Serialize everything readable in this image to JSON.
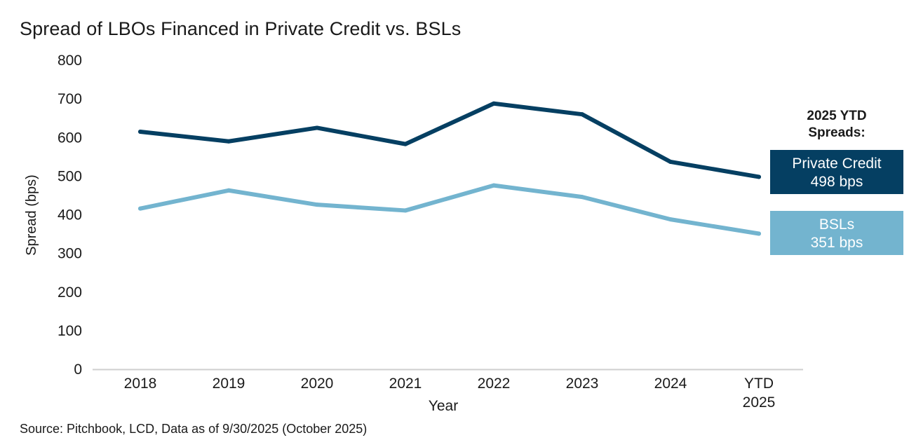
{
  "title": "Spread of LBOs Financed in Private Credit vs. BSLs",
  "source": "Source: Pitchbook, LCD, Data as of 9/30/2025 (October 2025)",
  "colors": {
    "private_credit": "#053f62",
    "bsl": "#73b4cf",
    "axis": "#cfcfcf",
    "text": "#1a1a1a"
  },
  "side_panel": {
    "heading_line1": "2025 YTD",
    "heading_line2": "Spreads:",
    "private_credit": {
      "name": "Private Credit",
      "value": "498 bps"
    },
    "bsl": {
      "name": "BSLs",
      "value": "351 bps"
    }
  },
  "chart_data": {
    "type": "line",
    "title": "Spread of LBOs Financed in Private Credit vs. BSLs",
    "xlabel": "Year",
    "ylabel": "Spread (bps)",
    "categories": [
      "2018",
      "2019",
      "2020",
      "2021",
      "2022",
      "2023",
      "2024",
      "YTD 2025"
    ],
    "category_lines": [
      [
        "2018"
      ],
      [
        "2019"
      ],
      [
        "2020"
      ],
      [
        "2021"
      ],
      [
        "2022"
      ],
      [
        "2023"
      ],
      [
        "2024"
      ],
      [
        "YTD",
        "2025"
      ]
    ],
    "ylim": [
      0,
      800
    ],
    "yticks": [
      0,
      100,
      200,
      300,
      400,
      500,
      600,
      700,
      800
    ],
    "grid": false,
    "series": [
      {
        "name": "Private Credit",
        "values": [
          615,
          590,
          625,
          583,
          688,
          660,
          537,
          498
        ]
      },
      {
        "name": "BSLs",
        "values": [
          416,
          463,
          426,
          411,
          476,
          446,
          388,
          351
        ]
      }
    ]
  }
}
